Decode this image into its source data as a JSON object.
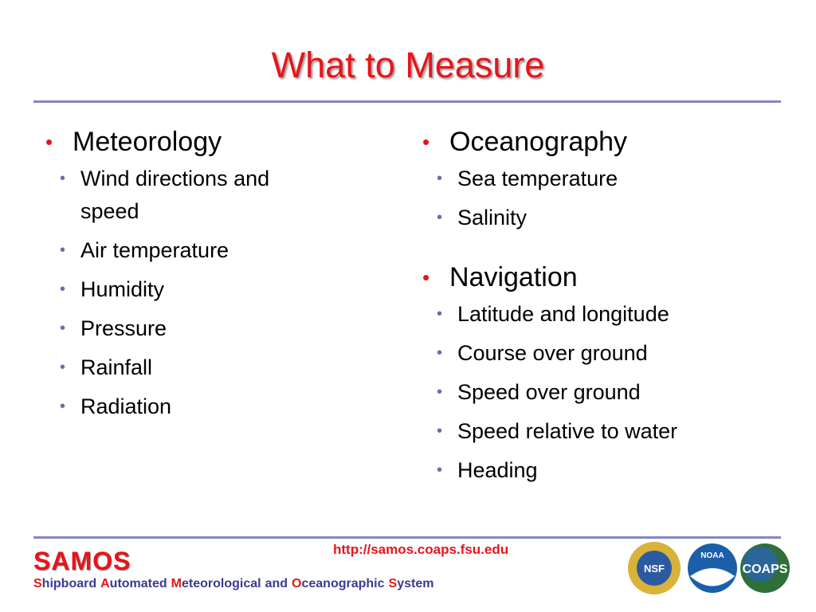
{
  "header": {
    "title": "What to Measure"
  },
  "columns": [
    {
      "sections": [
        {
          "heading": "Meteorology",
          "items": [
            "Wind directions and speed",
            "Air temperature",
            "Humidity",
            "Pressure",
            "Rainfall",
            "Radiation"
          ]
        }
      ]
    },
    {
      "sections": [
        {
          "heading": "Oceanography",
          "items": [
            "Sea temperature",
            "Salinity"
          ]
        },
        {
          "heading": "Navigation",
          "items": [
            "Latitude and longitude",
            "Course over ground",
            "Speed over ground",
            "Speed relative to water",
            "Heading"
          ]
        }
      ]
    }
  ],
  "footer": {
    "url": "http://samos.coaps.fsu.edu",
    "brand": "SAMOS",
    "tagline": [
      "Shipboard",
      "Automated",
      "Meteorological",
      "and",
      "Oceanographic",
      "System"
    ]
  },
  "logos": [
    "NSF",
    "NOAA",
    "COAPS"
  ]
}
